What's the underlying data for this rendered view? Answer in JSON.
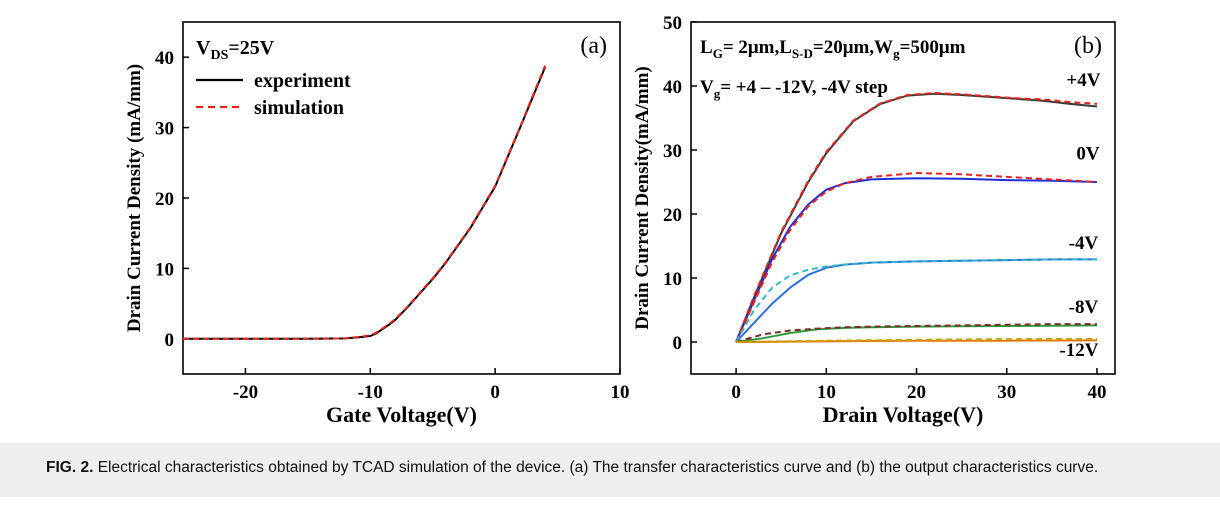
{
  "chart_data": [
    {
      "id": "a",
      "type": "line",
      "panel_label": "(a)",
      "condition": {
        "main": "V",
        "sub": "DS",
        "rest": "=25V"
      },
      "xlabel": "Gate Voltage(V)",
      "ylabel": "Drain Current Density (mA/mm)",
      "xlim": [
        -25,
        10
      ],
      "ylim": [
        -5,
        45
      ],
      "xticks": [
        -20,
        -10,
        0,
        10
      ],
      "yticks": [
        0,
        10,
        20,
        30,
        40
      ],
      "legend": {
        "placement": "top-left",
        "entries": [
          {
            "label": "experiment",
            "color": "#000000",
            "dash": false
          },
          {
            "label": "simulation",
            "color": "#e8231a",
            "dash": true
          }
        ]
      },
      "series": [
        {
          "name": "experiment",
          "color": "#000000",
          "dash": false,
          "x": [
            -25,
            -20,
            -15,
            -12,
            -11,
            -10,
            -9.5,
            -9,
            -8.5,
            -8,
            -7,
            -6,
            -5,
            -4,
            -2,
            0,
            2,
            4
          ],
          "y": [
            0,
            0,
            0,
            0.05,
            0.2,
            0.4,
            0.8,
            1.4,
            2.0,
            2.7,
            4.5,
            6.5,
            8.5,
            10.7,
            15.7,
            21.6,
            30.0,
            38.6
          ]
        },
        {
          "name": "simulation",
          "color": "#e8231a",
          "dash": true,
          "x": [
            -25,
            -20,
            -15,
            -12,
            -11,
            -10,
            -9.5,
            -9,
            -8.5,
            -8,
            -7,
            -6,
            -5,
            -4,
            -2,
            0,
            2,
            4
          ],
          "y": [
            0,
            0,
            0,
            0.05,
            0.25,
            0.5,
            0.9,
            1.5,
            2.1,
            2.8,
            4.6,
            6.6,
            8.6,
            10.8,
            15.8,
            21.7,
            30.1,
            38.8
          ]
        }
      ]
    },
    {
      "id": "b",
      "type": "line",
      "panel_label": "(b)",
      "conditions": [
        {
          "segments": [
            [
              "L",
              "base"
            ],
            [
              "G",
              "sub"
            ],
            [
              "= 2μm,L",
              "base"
            ],
            [
              "S-D",
              "sub"
            ],
            [
              "=20μm,W",
              "base"
            ],
            [
              "g",
              "sub"
            ],
            [
              "=500μm",
              "base"
            ]
          ]
        },
        {
          "segments": [
            [
              "V",
              "base"
            ],
            [
              "g",
              "sub"
            ],
            [
              "= +4 – -12V, -4V step",
              "base"
            ]
          ]
        }
      ],
      "xlabel": "Drain Voltage(V)",
      "ylabel": "Drain Current Density(mA/mm)",
      "xlim": [
        -5,
        42
      ],
      "ylim": [
        -5,
        50
      ],
      "xticks": [
        0,
        10,
        20,
        30,
        40
      ],
      "yticks": [
        0,
        10,
        20,
        30,
        40,
        50
      ],
      "curve_labels": [
        {
          "text": "+4V",
          "x": 38.5,
          "y": 40
        },
        {
          "text": "0V",
          "x": 39,
          "y": 28.5
        },
        {
          "text": "-4V",
          "x": 38.5,
          "y": 14.5
        },
        {
          "text": "-8V",
          "x": 38.5,
          "y": 4.5
        },
        {
          "text": "-12V",
          "x": 38,
          "y": -2.2
        }
      ],
      "series": [
        {
          "name": "+4V experiment",
          "color": "#3a3a3a",
          "dash": false,
          "x": [
            0,
            2,
            5,
            8,
            10,
            13,
            16,
            19,
            22,
            25,
            28,
            31,
            34,
            37,
            40
          ],
          "y": [
            0,
            7,
            17,
            25,
            29.5,
            34.5,
            37.2,
            38.5,
            38.8,
            38.6,
            38.3,
            38.0,
            37.7,
            37.2,
            36.8
          ]
        },
        {
          "name": "+4V simulation",
          "color": "#e8231a",
          "dash": true,
          "x": [
            0,
            2,
            5,
            8,
            10,
            13,
            16,
            19,
            22,
            25,
            28,
            31,
            34,
            37,
            40
          ],
          "y": [
            0,
            7.2,
            17.2,
            25.2,
            29.7,
            34.6,
            37.3,
            38.6,
            38.9,
            38.7,
            38.4,
            38.1,
            37.9,
            37.5,
            37.2
          ]
        },
        {
          "name": "0V experiment",
          "color": "#1f2fd8",
          "dash": false,
          "x": [
            0,
            2,
            4,
            6,
            8,
            10,
            12,
            15,
            20,
            25,
            30,
            35,
            40
          ],
          "y": [
            0,
            6.5,
            13,
            18,
            21.5,
            23.8,
            24.8,
            25.4,
            25.6,
            25.5,
            25.3,
            25.2,
            25.0
          ]
        },
        {
          "name": "0V simulation",
          "color": "#e8231a",
          "dash": true,
          "x": [
            0,
            2,
            4,
            6,
            8,
            10,
            12,
            15,
            20,
            25,
            30,
            35,
            40
          ],
          "y": [
            0,
            6.2,
            12.5,
            17.5,
            21.2,
            23.5,
            24.8,
            25.8,
            26.4,
            26.2,
            25.8,
            25.4,
            25.0
          ]
        },
        {
          "name": "-4V experiment",
          "color": "#2e6fdc",
          "dash": false,
          "x": [
            0,
            2,
            4,
            6,
            8,
            10,
            12,
            15,
            20,
            25,
            30,
            35,
            40
          ],
          "y": [
            0,
            3,
            6,
            8.5,
            10.5,
            11.6,
            12.1,
            12.4,
            12.6,
            12.7,
            12.8,
            12.9,
            12.9
          ]
        },
        {
          "name": "-4V simulation",
          "color": "#2fb8c4",
          "dash": true,
          "x": [
            0,
            2,
            4,
            6,
            8,
            10,
            12,
            15,
            20,
            25,
            30,
            35,
            40
          ],
          "y": [
            0,
            5,
            8.5,
            10.4,
            11.3,
            11.8,
            12.1,
            12.4,
            12.6,
            12.7,
            12.8,
            12.9,
            12.9
          ]
        },
        {
          "name": "-8V experiment",
          "color": "#2f9a3a",
          "dash": false,
          "x": [
            0,
            3,
            6,
            9,
            12,
            15,
            20,
            25,
            30,
            35,
            40
          ],
          "y": [
            0,
            0.6,
            1.4,
            2.0,
            2.2,
            2.3,
            2.4,
            2.45,
            2.5,
            2.55,
            2.6
          ]
        },
        {
          "name": "-8V simulation",
          "color": "#7a2b2b",
          "dash": true,
          "x": [
            0,
            3,
            6,
            9,
            12,
            15,
            20,
            25,
            30,
            35,
            40
          ],
          "y": [
            0,
            1.2,
            1.8,
            2.1,
            2.3,
            2.4,
            2.5,
            2.6,
            2.7,
            2.8,
            2.8
          ]
        },
        {
          "name": "-12V experiment",
          "color": "#e07a10",
          "dash": false,
          "x": [
            0,
            10,
            20,
            30,
            40
          ],
          "y": [
            0,
            0.1,
            0.2,
            0.2,
            0.25
          ]
        },
        {
          "name": "-12V simulation",
          "color": "#c8a000",
          "dash": true,
          "x": [
            0,
            10,
            20,
            30,
            40
          ],
          "y": [
            0,
            0.2,
            0.35,
            0.45,
            0.5
          ]
        }
      ]
    }
  ],
  "caption": {
    "label": "FIG. 2.",
    "text": "Electrical characteristics obtained by TCAD simulation of the device. (a) The transfer characteristics curve and (b) the output characteristics curve."
  }
}
